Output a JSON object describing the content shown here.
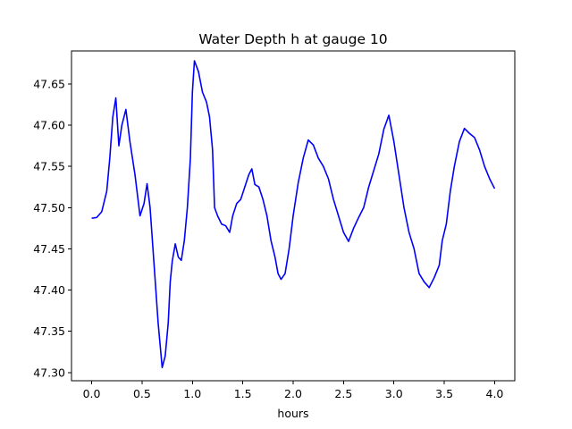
{
  "chart_data": {
    "type": "line",
    "title": "Water Depth h at gauge 10",
    "xlabel": "hours",
    "ylabel": "",
    "xlim": [
      -0.2,
      4.2
    ],
    "ylim": [
      47.29,
      47.69
    ],
    "xticks": [
      "0.0",
      "0.5",
      "1.0",
      "1.5",
      "2.0",
      "2.5",
      "3.0",
      "3.5",
      "4.0"
    ],
    "yticks": [
      "47.30",
      "47.35",
      "47.40",
      "47.45",
      "47.50",
      "47.55",
      "47.60",
      "47.65"
    ],
    "grid": false,
    "legend": "none",
    "line_color": "#0000ff",
    "series": [
      {
        "x": [
          0.0,
          0.05,
          0.1,
          0.15,
          0.18,
          0.21,
          0.24,
          0.27,
          0.3,
          0.34,
          0.38,
          0.43,
          0.48,
          0.52,
          0.55,
          0.58,
          0.62,
          0.66,
          0.7,
          0.73,
          0.76,
          0.78,
          0.8,
          0.83,
          0.86,
          0.89,
          0.92,
          0.95,
          0.98,
          1.0,
          1.02,
          1.06,
          1.1,
          1.14,
          1.17,
          1.2,
          1.22,
          1.25,
          1.29,
          1.33,
          1.37,
          1.4,
          1.44,
          1.48,
          1.52,
          1.56,
          1.59,
          1.62,
          1.66,
          1.7,
          1.74,
          1.78,
          1.82,
          1.85,
          1.88,
          1.92,
          1.96,
          2.0,
          2.05,
          2.1,
          2.15,
          2.2,
          2.25,
          2.3,
          2.35,
          2.4,
          2.45,
          2.5,
          2.55,
          2.6,
          2.65,
          2.7,
          2.75,
          2.8,
          2.85,
          2.9,
          2.95,
          3.0,
          3.05,
          3.1,
          3.15,
          3.2,
          3.25,
          3.3,
          3.35,
          3.4,
          3.45,
          3.48,
          3.52,
          3.56,
          3.6,
          3.65,
          3.7,
          3.75,
          3.8,
          3.85,
          3.9,
          3.95,
          4.0
        ],
        "y": [
          47.487,
          47.488,
          47.495,
          47.52,
          47.56,
          47.61,
          47.633,
          47.575,
          47.6,
          47.619,
          47.58,
          47.54,
          47.49,
          47.505,
          47.529,
          47.5,
          47.43,
          47.36,
          47.306,
          47.32,
          47.36,
          47.41,
          47.435,
          47.456,
          47.44,
          47.436,
          47.46,
          47.5,
          47.56,
          47.64,
          47.678,
          47.665,
          47.64,
          47.628,
          47.61,
          47.57,
          47.5,
          47.49,
          47.48,
          47.478,
          47.47,
          47.49,
          47.505,
          47.51,
          47.525,
          47.54,
          47.547,
          47.528,
          47.525,
          47.51,
          47.49,
          47.46,
          47.44,
          47.42,
          47.413,
          47.42,
          47.45,
          47.49,
          47.53,
          47.56,
          47.582,
          47.576,
          47.56,
          47.55,
          47.535,
          47.51,
          47.49,
          47.47,
          47.459,
          47.475,
          47.488,
          47.5,
          47.525,
          47.545,
          47.565,
          47.595,
          47.612,
          47.58,
          47.54,
          47.5,
          47.47,
          47.45,
          47.42,
          47.41,
          47.403,
          47.415,
          47.43,
          47.46,
          47.48,
          47.52,
          47.55,
          47.58,
          47.596,
          47.59,
          47.585,
          47.57,
          47.55,
          47.535,
          47.523
        ]
      }
    ]
  }
}
